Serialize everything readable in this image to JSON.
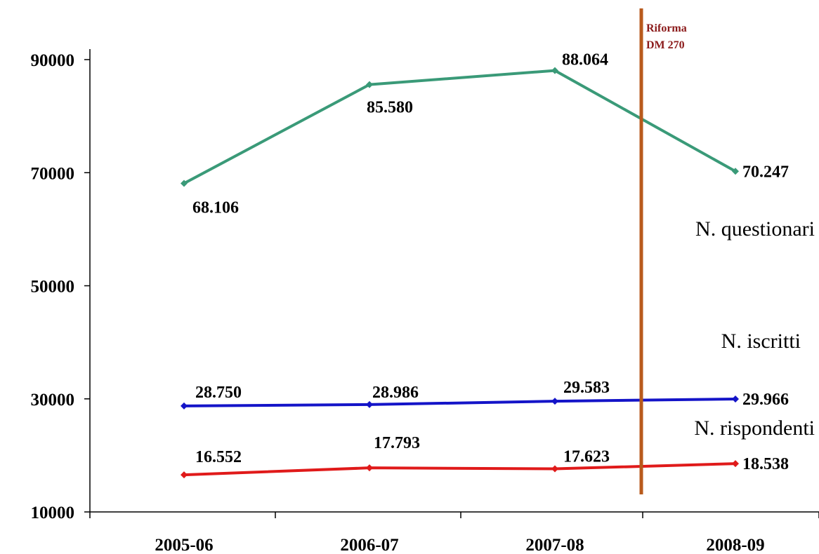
{
  "chart_data": {
    "type": "line",
    "title": "",
    "xlabel": "",
    "ylabel": "",
    "categories": [
      "2005-06",
      "2006-07",
      "2007-08",
      "2008-09"
    ],
    "y_ticks": [
      "90000",
      "70000",
      "50000",
      "30000",
      "10000"
    ],
    "ylim": [
      10000,
      90000
    ],
    "grid": false,
    "legend": "none",
    "series": [
      {
        "name": "N. questionari",
        "color": "#3a9a78",
        "values": [
          68106,
          85580,
          88064,
          70247
        ],
        "labels": [
          "68.106",
          "85.580",
          "88.064",
          "70.247"
        ]
      },
      {
        "name": "N. iscritti",
        "color": "#1414c8",
        "values": [
          28750,
          28986,
          29583,
          29966
        ],
        "labels": [
          "28.750",
          "28.986",
          "29.583",
          "29.966"
        ]
      },
      {
        "name": "N. rispondenti",
        "color": "#e01a1a",
        "values": [
          16552,
          17793,
          17623,
          18538
        ],
        "labels": [
          "16.552",
          "17.793",
          "17.623",
          "18.538"
        ]
      }
    ],
    "annotation": {
      "line1": "Riforma",
      "line2": "DM 270",
      "color": "#b85a1c",
      "text_color": "#8b1a1a"
    }
  }
}
